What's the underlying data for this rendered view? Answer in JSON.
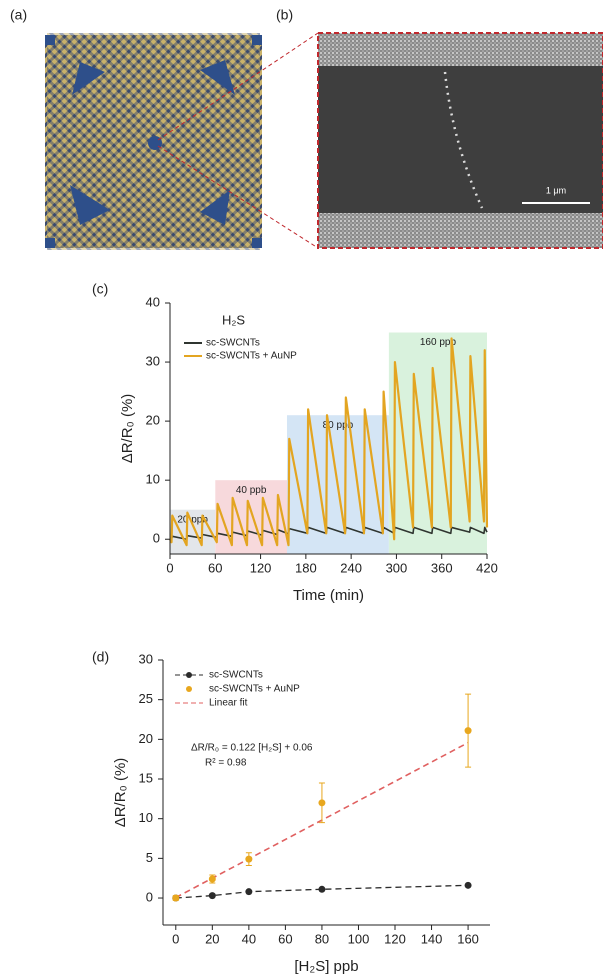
{
  "panels": {
    "labels": [
      "(a)",
      "(b)",
      "(c)",
      "(d)"
    ],
    "scale_bar": "1 μm"
  },
  "chart_data": [
    {
      "type": "line",
      "annotation": "H₂S",
      "x_label": "Time (min)",
      "y_label": "ΔR/R₀ (%)",
      "x": [
        0,
        2,
        3,
        22,
        23,
        42,
        43,
        62,
        63,
        82,
        83,
        102,
        103,
        122,
        123,
        142,
        143,
        157,
        158,
        182,
        183,
        207,
        208,
        232,
        233,
        257,
        258,
        282,
        283,
        297,
        298,
        322,
        323,
        347,
        348,
        372,
        373,
        397,
        398,
        416,
        417,
        420
      ],
      "series": [
        {
          "name": "sc-SWCNTs",
          "color": "#2f3530",
          "values": [
            0,
            0,
            0.5,
            0,
            0.6,
            0.2,
            0.8,
            0.3,
            1,
            0.5,
            1.2,
            0.6,
            1.4,
            0.7,
            1.5,
            0.8,
            1.6,
            0.9,
            1.8,
            1,
            2,
            1,
            2,
            1,
            2,
            1,
            2,
            1,
            2,
            1,
            2,
            1,
            2,
            1,
            2,
            1,
            2,
            1.2,
            2,
            1,
            2,
            1.2
          ]
        },
        {
          "name": "sc-SWCNTs + AuNP",
          "color": "#e3a521",
          "values": [
            0,
            -0.5,
            4,
            -1,
            4.5,
            -1,
            4,
            -0.5,
            6,
            -1,
            7,
            -1,
            6.5,
            -1,
            7,
            -1,
            7.5,
            -1,
            17,
            1,
            22,
            1,
            21,
            1,
            24,
            1,
            22,
            1,
            25,
            0,
            30,
            2,
            28,
            2,
            29,
            2,
            34,
            3,
            31,
            3,
            32,
            2
          ]
        }
      ],
      "regions": [
        {
          "label": "20 ppb",
          "start": 0,
          "end": 60,
          "top": 5,
          "color": "#e3e6ea"
        },
        {
          "label": "40 ppb",
          "start": 60,
          "end": 155,
          "top": 10,
          "color": "#f7d9dc"
        },
        {
          "label": "80 ppb",
          "start": 155,
          "end": 290,
          "top": 21,
          "color": "#d4e5f5"
        },
        {
          "label": "160 ppb",
          "start": 290,
          "end": 420,
          "top": 35,
          "color": "#d9f2dd"
        }
      ],
      "xlim": [
        0,
        420
      ],
      "xticks": [
        0,
        60,
        120,
        180,
        240,
        300,
        360,
        420
      ],
      "ylim": [
        -2.5,
        40
      ],
      "yticks": [
        0,
        10,
        20,
        30,
        40
      ]
    },
    {
      "type": "scatter",
      "x_label": "[H₂S] ppb",
      "y_label": "ΔR/R₀ (%)",
      "annotations": [
        "ΔR/R₀ = 0.122 [H₂S] + 0.06",
        "R² = 0.98"
      ],
      "x": [
        0,
        20,
        40,
        80,
        160
      ],
      "series": [
        {
          "name": "sc-SWCNTs",
          "color": "#2b2b2b",
          "dashed": true,
          "values": [
            0,
            0.3,
            0.8,
            1.1,
            1.6
          ]
        },
        {
          "name": "sc-SWCNTs + AuNP",
          "color": "#e8a71e",
          "values": [
            0,
            2.4,
            4.9,
            12,
            21.1
          ],
          "errors": [
            0.3,
            0.5,
            0.8,
            2.5,
            4.6
          ]
        }
      ],
      "fit": {
        "name": "Linear fit",
        "color": "#e06060",
        "slope": 0.122,
        "intercept": 0.06,
        "x": [
          0,
          160
        ]
      },
      "xlim": [
        -7,
        172
      ],
      "xticks": [
        0,
        20,
        40,
        60,
        80,
        100,
        120,
        140,
        160
      ],
      "ylim": [
        -3.4,
        30
      ],
      "yticks": [
        0,
        5,
        10,
        15,
        20,
        25,
        30
      ]
    }
  ]
}
